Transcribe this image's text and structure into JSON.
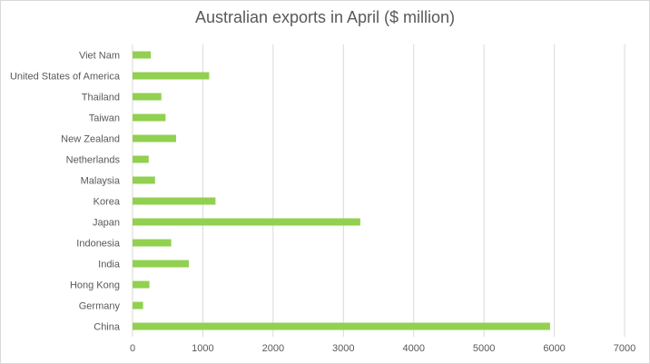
{
  "chart_data": {
    "type": "bar",
    "orientation": "horizontal",
    "title": "Australian exports in April ($ million)",
    "xlabel": "",
    "ylabel": "",
    "categories": [
      "Viet Nam",
      "United States of America",
      "Thailand",
      "Taiwan",
      "New Zealand",
      "Netherlands",
      "Malaysia",
      "Korea",
      "Japan",
      "Indonesia",
      "India",
      "Hong Kong",
      "Germany",
      "China"
    ],
    "values": [
      260,
      1090,
      410,
      470,
      620,
      230,
      320,
      1180,
      3240,
      550,
      800,
      240,
      150,
      5940
    ],
    "xlim": [
      0,
      7000
    ],
    "xticks": [
      0,
      1000,
      2000,
      3000,
      4000,
      5000,
      6000,
      7000
    ],
    "grid": "vertical",
    "legend": "none",
    "bar_color": "#92d050"
  }
}
